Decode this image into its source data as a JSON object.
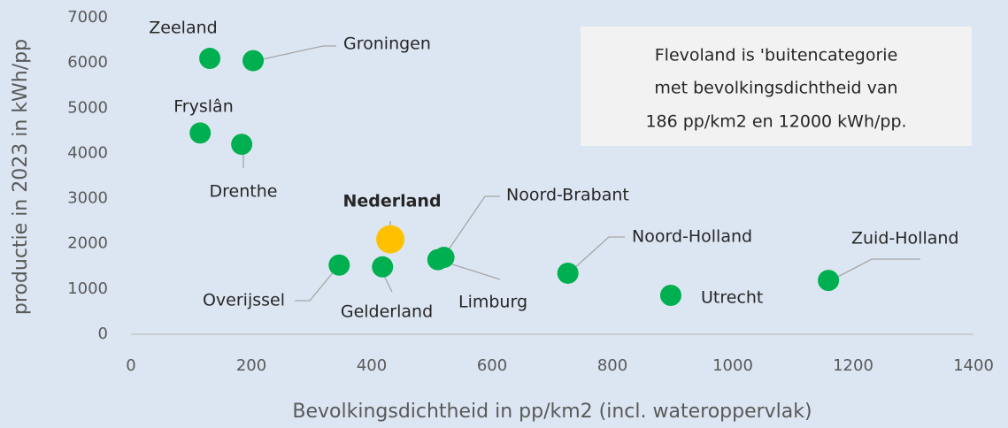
{
  "chart_data": {
    "type": "scatter",
    "x_label": "Bevolkingsdichtheid in pp/km2 (incl. wateroppervlak)",
    "y_label": "productie in 2023 in kWh/pp",
    "annotation": [
      "Flevoland is 'buitencategorie",
      "met bevolkingsdichtheid van",
      "186 pp/km2 en 12000 kWh/pp."
    ],
    "labels": [
      "Zeeland",
      "Groningen",
      "Fryslân",
      "Drenthe",
      "Nederland",
      "Overijssel",
      "Gelderland",
      "Limburg",
      "Noord-Brabant",
      "Noord-Holland",
      "Utrecht",
      "Zuid-Holland"
    ],
    "x": [
      131,
      203,
      115,
      184,
      431,
      346,
      418,
      510,
      520,
      726,
      897,
      1159
    ],
    "values": [
      6100,
      6050,
      4450,
      4200,
      2100,
      1530,
      1490,
      1650,
      1700,
      1350,
      860,
      1190
    ],
    "color": "#00b050",
    "point_colors": [
      "#00b050",
      "#00b050",
      "#00b050",
      "#00b050",
      "#ffc000",
      "#00b050",
      "#00b050",
      "#00b050",
      "#00b050",
      "#00b050",
      "#00b050",
      "#00b050"
    ],
    "xlim": [
      0,
      1400
    ],
    "xticks": [
      0,
      200,
      400,
      600,
      800,
      1000,
      1200,
      1400
    ],
    "ylim": [
      0,
      7000
    ],
    "yticks": [
      0,
      1000,
      2000,
      3000,
      4000,
      5000,
      6000,
      7000
    ],
    "grid": false
  }
}
